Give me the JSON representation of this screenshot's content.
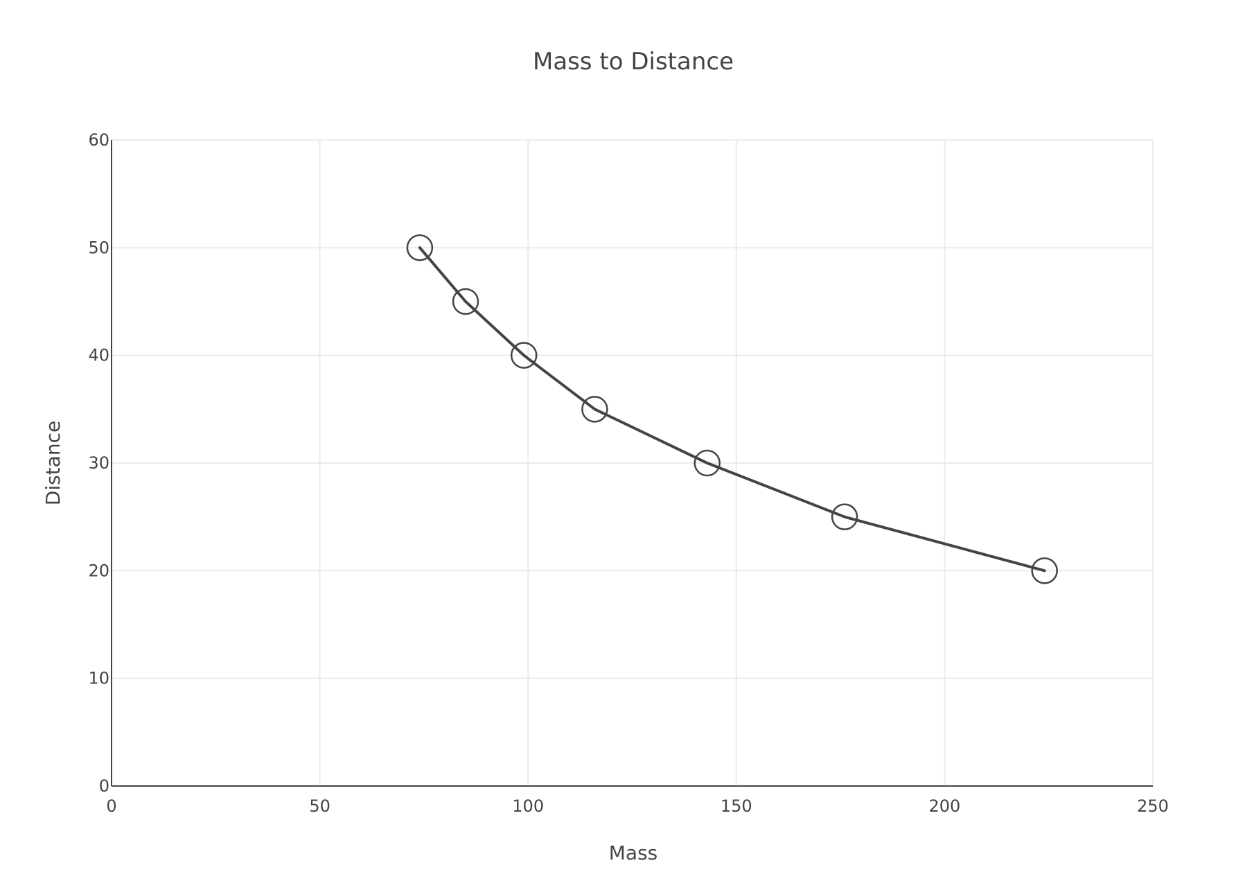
{
  "chart_data": {
    "type": "line",
    "title": "Mass to Distance",
    "xlabel": "Mass",
    "ylabel": "Distance",
    "xlim": [
      0,
      250
    ],
    "ylim": [
      0,
      60
    ],
    "xticks": [
      0,
      50,
      100,
      150,
      200,
      250
    ],
    "yticks": [
      0,
      10,
      20,
      30,
      40,
      50,
      60
    ],
    "grid": true,
    "legend": "none",
    "line_color": "#444444",
    "series": [
      {
        "mode": "lines+markers",
        "marker": "open-circle",
        "points": [
          {
            "x": 74,
            "y": 50
          },
          {
            "x": 85,
            "y": 45
          },
          {
            "x": 99,
            "y": 40
          },
          {
            "x": 116,
            "y": 35
          },
          {
            "x": 143,
            "y": 30
          },
          {
            "x": 176,
            "y": 25
          },
          {
            "x": 224,
            "y": 20
          }
        ]
      }
    ]
  }
}
